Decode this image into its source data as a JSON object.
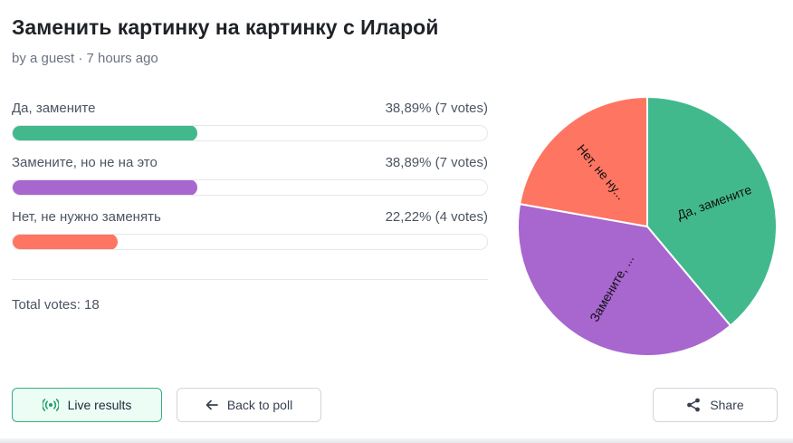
{
  "poll": {
    "title": "Заменить картинку на картинку с Иларой",
    "meta": "by a guest · 7 hours ago",
    "total_label": "Total votes: 18"
  },
  "options": [
    {
      "label": "Да, замените",
      "result": "38,89% (7 votes)",
      "percent": 38.89,
      "votes": 7,
      "color": "#41b98d"
    },
    {
      "label": "Замените, но не на это",
      "result": "38,89% (7 votes)",
      "percent": 38.89,
      "votes": 7,
      "color": "#a866cf"
    },
    {
      "label": "Нет, не нужно заменять",
      "result": "22,22% (4 votes)",
      "percent": 22.22,
      "votes": 4,
      "color": "#fe7561"
    }
  ],
  "buttons": {
    "live": "Live results",
    "back": "Back to poll",
    "share": "Share"
  },
  "icons": {
    "live": "live-broadcast-icon",
    "back": "arrow-left-icon",
    "share": "share-icon"
  },
  "chart_data": {
    "type": "pie",
    "categories": [
      "Да, замените",
      "Замените, но не на это",
      "Нет, не нужно заменять"
    ],
    "values": [
      7,
      7,
      4
    ],
    "slice_labels": [
      "Да, замените",
      "Замените, ...",
      "Нет, не ну..."
    ],
    "colors": [
      "#41b98d",
      "#a866cf",
      "#fe7561"
    ],
    "start": "12 o'clock, clockwise"
  }
}
